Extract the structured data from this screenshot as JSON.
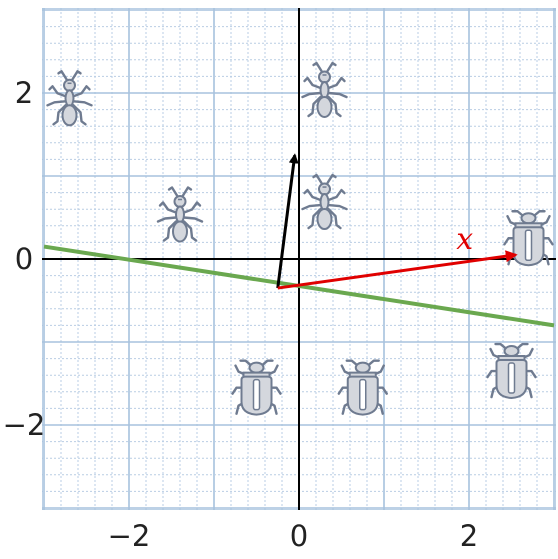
{
  "title": "",
  "axes": {
    "x_range": [
      -3,
      3
    ],
    "y_range": [
      -3,
      3
    ],
    "x_tick_labels": [
      {
        "value": -2,
        "text": "−2"
      },
      {
        "value": 0,
        "text": "0"
      },
      {
        "value": 2,
        "text": "2"
      }
    ],
    "y_tick_labels": [
      {
        "value": 2,
        "text": "2"
      },
      {
        "value": 0,
        "text": "0"
      },
      {
        "value": -2,
        "text": "−2"
      }
    ],
    "grid": true,
    "major_grid_step": 1,
    "minor_grid_step": 0.2
  },
  "chart_data": {
    "type": "scatter",
    "x_range": [
      -3,
      3
    ],
    "y_range": [
      -3,
      3
    ],
    "series": [
      {
        "class": "ant",
        "icon": "ant-icon",
        "points": [
          [
            -2.7,
            1.9
          ],
          [
            -1.4,
            0.5
          ],
          [
            0.3,
            2.0
          ],
          [
            0.3,
            0.65
          ]
        ]
      },
      {
        "class": "beetle",
        "icon": "beetle-icon",
        "points": [
          [
            2.7,
            0.25
          ],
          [
            -0.5,
            -1.55
          ],
          [
            0.75,
            -1.55
          ],
          [
            2.5,
            -1.35
          ]
        ]
      }
    ],
    "decision_boundary": {
      "from": [
        -3,
        0.15
      ],
      "to": [
        3,
        -0.8
      ],
      "color": "#6aa84f"
    },
    "normal_vector": {
      "from": [
        -0.25,
        -0.35
      ],
      "to": [
        -0.05,
        1.25
      ],
      "color": "#000000"
    },
    "x_vector": {
      "from": [
        -0.25,
        -0.35
      ],
      "to": [
        2.55,
        0.05
      ],
      "label": "x",
      "color": "#e00000"
    }
  },
  "colors": {
    "minor_grid": "#b9cde4",
    "major_grid": "#a7c2dd",
    "axis": "#000000",
    "boundary": "#6aa84f",
    "x_vector": "#e00000",
    "bug_fill": "#d4d7dd",
    "bug_stroke": "#6f7b90"
  }
}
